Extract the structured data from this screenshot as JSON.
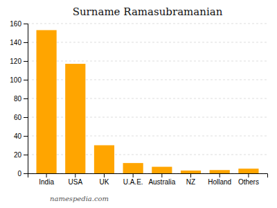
{
  "chart_data": {
    "type": "bar",
    "title": "Surname Ramasubramanian",
    "categories": [
      "India",
      "USA",
      "UK",
      "U.A.E.",
      "Australia",
      "NZ",
      "Holland",
      "Others"
    ],
    "values": [
      153,
      117,
      30,
      11,
      7,
      3,
      3.5,
      5
    ],
    "color": "#FFA500",
    "ylim": [
      0,
      160
    ],
    "yticks": [
      0,
      20,
      40,
      60,
      80,
      100,
      120,
      140,
      160
    ],
    "grid": true,
    "annotations": [
      "namespedia.com"
    ]
  }
}
